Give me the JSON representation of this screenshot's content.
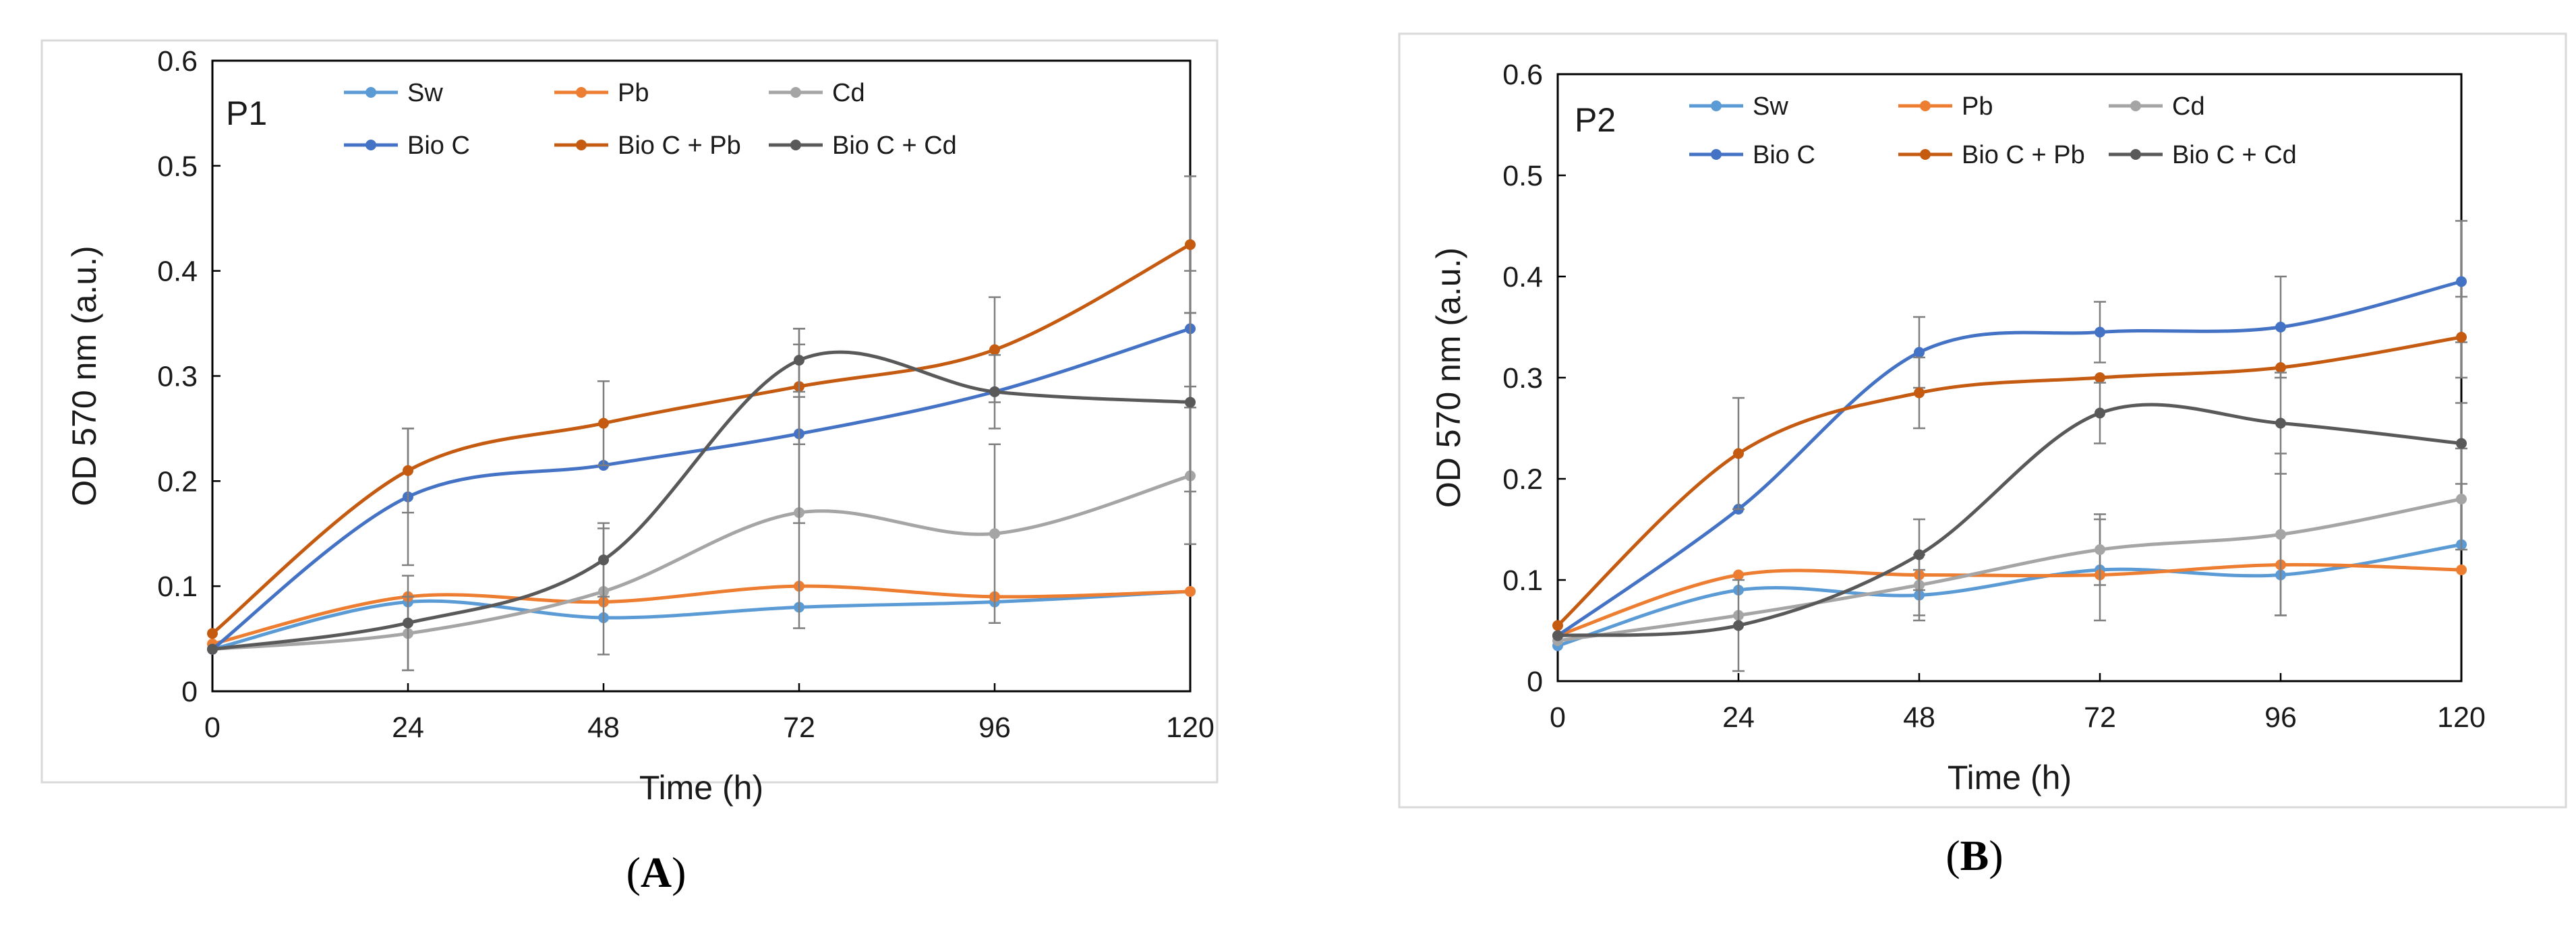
{
  "chart_data": [
    {
      "type": "line",
      "title": "P1",
      "caption_letter": "A",
      "xlabel": "Time (h)",
      "ylabel": "OD 570 nm (a.u.)",
      "x": [
        0,
        24,
        48,
        72,
        96,
        120
      ],
      "x_tick_labels": [
        "0",
        "24",
        "48",
        "72",
        "96",
        "120"
      ],
      "ylim": [
        0,
        0.6
      ],
      "y_ticks": [
        0,
        0.1,
        0.2,
        0.3,
        0.4,
        0.5,
        0.6
      ],
      "y_tick_labels": [
        "0",
        "0.1",
        "0.2",
        "0.3",
        "0.4",
        "0.5",
        "0.6"
      ],
      "grid": false,
      "legend": "top",
      "series": [
        {
          "name": "Sw",
          "color": "#5b9bd5",
          "values": [
            0.04,
            0.085,
            0.07,
            0.08,
            0.085,
            0.095
          ],
          "errors": [
            0,
            0,
            0,
            0,
            0,
            0
          ]
        },
        {
          "name": "Pb",
          "color": "#ed7d31",
          "values": [
            0.045,
            0.09,
            0.085,
            0.1,
            0.09,
            0.095
          ],
          "errors": [
            0,
            0,
            0,
            0,
            0,
            0
          ]
        },
        {
          "name": "Cd",
          "color": "#a5a5a5",
          "values": [
            0.04,
            0.055,
            0.095,
            0.17,
            0.15,
            0.205
          ],
          "errors": [
            0,
            0.035,
            0.06,
            0.11,
            0.085,
            0.065
          ]
        },
        {
          "name": "Bio C",
          "color": "#4472c4",
          "values": [
            0.04,
            0.185,
            0.215,
            0.245,
            0.285,
            0.345
          ],
          "errors": [
            0,
            0.065,
            0,
            0.085,
            0,
            0.055
          ]
        },
        {
          "name": "Bio C + Pb",
          "color": "#c55a11",
          "values": [
            0.055,
            0.21,
            0.255,
            0.29,
            0.325,
            0.425
          ],
          "errors": [
            0,
            0.04,
            0.04,
            0.055,
            0.05,
            0.065
          ]
        },
        {
          "name": "Bio C + Cd",
          "color": "#595959",
          "values": [
            0.04,
            0.065,
            0.125,
            0.315,
            0.285,
            0.275
          ],
          "errors": [
            0,
            0.045,
            0.035,
            0.03,
            0.035,
            0.085
          ]
        }
      ]
    },
    {
      "type": "line",
      "title": "P2",
      "caption_letter": "B",
      "xlabel": "Time (h)",
      "ylabel": "OD 570 nm (a.u.)",
      "x": [
        0,
        24,
        48,
        72,
        96,
        120
      ],
      "x_tick_labels": [
        "0",
        "24",
        "48",
        "72",
        "96",
        "120"
      ],
      "ylim": [
        0,
        0.6
      ],
      "y_ticks": [
        0,
        0.1,
        0.2,
        0.3,
        0.4,
        0.5,
        0.6
      ],
      "y_tick_labels": [
        "0",
        "0.1",
        "0.2",
        "0.3",
        "0.4",
        "0.5",
        "0.6"
      ],
      "grid": false,
      "legend": "top",
      "series": [
        {
          "name": "Sw",
          "color": "#5b9bd5",
          "values": [
            0.035,
            0.09,
            0.085,
            0.11,
            0.105,
            0.135
          ],
          "errors": [
            0,
            0,
            0.025,
            0.05,
            0.04,
            0
          ]
        },
        {
          "name": "Pb",
          "color": "#ed7d31",
          "values": [
            0.045,
            0.105,
            0.105,
            0.105,
            0.115,
            0.11
          ],
          "errors": [
            0,
            0,
            0,
            0,
            0,
            0
          ]
        },
        {
          "name": "Cd",
          "color": "#a5a5a5",
          "values": [
            0.04,
            0.065,
            0.095,
            0.13,
            0.145,
            0.18
          ],
          "errors": [
            0,
            0,
            0.03,
            0.035,
            0.08,
            0.05
          ]
        },
        {
          "name": "Bio C",
          "color": "#4472c4",
          "values": [
            0.045,
            0.17,
            0.325,
            0.345,
            0.35,
            0.395
          ],
          "errors": [
            0,
            0,
            0.035,
            0.03,
            0.05,
            0.06
          ]
        },
        {
          "name": "Bio C + Pb",
          "color": "#c55a11",
          "values": [
            0.055,
            0.225,
            0.285,
            0.3,
            0.31,
            0.34
          ],
          "errors": [
            0,
            0.055,
            0.035,
            0,
            0,
            0.04
          ]
        },
        {
          "name": "Bio C + Cd",
          "color": "#595959",
          "values": [
            0.045,
            0.055,
            0.125,
            0.265,
            0.255,
            0.235
          ],
          "errors": [
            0,
            0.045,
            0.035,
            0.03,
            0.05,
            0.04
          ]
        }
      ]
    }
  ]
}
